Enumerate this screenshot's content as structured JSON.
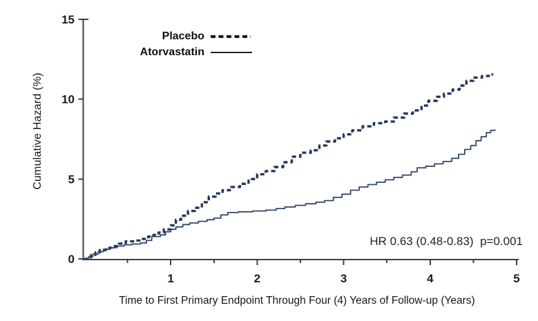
{
  "chart_data": {
    "type": "line",
    "subtype": "step",
    "title": "",
    "xlabel": "Time to First Primary Endpoint Through Four (4) Years of Follow-up (Years)",
    "ylabel": "Cumulative Hazard (%)",
    "xlim": [
      0,
      5
    ],
    "ylim": [
      0,
      15
    ],
    "x_ticks_major": [
      1,
      2,
      3,
      4,
      5
    ],
    "x_ticks_minor": [
      0.5,
      1.5,
      2.5,
      3.5,
      4.5
    ],
    "y_ticks": [
      0,
      5,
      10,
      15
    ],
    "grid": false,
    "legend_position": "top-left-inside",
    "annotation": "HR 0.63 (0.48-0.83)  p=0.001",
    "colors": {
      "placebo_line": "#25375c",
      "atorvastatin_line": "#32466c",
      "axis": "#3f3f3f",
      "tick_label": "#1c1c1c"
    },
    "series": [
      {
        "name": "Placebo",
        "style": "dashed",
        "color": "#25375c",
        "points": [
          [
            0,
            0
          ],
          [
            0.04,
            0.1
          ],
          [
            0.08,
            0.25
          ],
          [
            0.13,
            0.4
          ],
          [
            0.18,
            0.55
          ],
          [
            0.25,
            0.7
          ],
          [
            0.32,
            0.8
          ],
          [
            0.4,
            0.95
          ],
          [
            0.48,
            1.1
          ],
          [
            0.58,
            1.15
          ],
          [
            0.66,
            1.25
          ],
          [
            0.74,
            1.4
          ],
          [
            0.8,
            1.5
          ],
          [
            0.86,
            1.65
          ],
          [
            0.92,
            1.85
          ],
          [
            1.0,
            2.1
          ],
          [
            1.06,
            2.45
          ],
          [
            1.12,
            2.7
          ],
          [
            1.2,
            3.0
          ],
          [
            1.28,
            3.2
          ],
          [
            1.36,
            3.55
          ],
          [
            1.44,
            3.9
          ],
          [
            1.52,
            4.1
          ],
          [
            1.6,
            4.3
          ],
          [
            1.7,
            4.5
          ],
          [
            1.8,
            4.7
          ],
          [
            1.9,
            5.0
          ],
          [
            2.0,
            5.3
          ],
          [
            2.1,
            5.5
          ],
          [
            2.2,
            5.75
          ],
          [
            2.3,
            6.05
          ],
          [
            2.4,
            6.4
          ],
          [
            2.5,
            6.65
          ],
          [
            2.62,
            6.8
          ],
          [
            2.72,
            7.1
          ],
          [
            2.8,
            7.35
          ],
          [
            2.9,
            7.55
          ],
          [
            3.0,
            7.8
          ],
          [
            3.1,
            8.05
          ],
          [
            3.22,
            8.3
          ],
          [
            3.35,
            8.5
          ],
          [
            3.48,
            8.6
          ],
          [
            3.58,
            8.85
          ],
          [
            3.7,
            9.1
          ],
          [
            3.8,
            9.3
          ],
          [
            3.9,
            9.6
          ],
          [
            3.98,
            9.9
          ],
          [
            4.08,
            10.15
          ],
          [
            4.16,
            10.35
          ],
          [
            4.26,
            10.6
          ],
          [
            4.34,
            10.85
          ],
          [
            4.42,
            11.15
          ],
          [
            4.5,
            11.35
          ],
          [
            4.6,
            11.45
          ],
          [
            4.68,
            11.55
          ],
          [
            4.73,
            11.55
          ]
        ]
      },
      {
        "name": "Atorvastatin",
        "style": "solid",
        "color": "#32466c",
        "points": [
          [
            0,
            0
          ],
          [
            0.05,
            0.15
          ],
          [
            0.1,
            0.3
          ],
          [
            0.16,
            0.45
          ],
          [
            0.22,
            0.6
          ],
          [
            0.3,
            0.7
          ],
          [
            0.38,
            0.8
          ],
          [
            0.46,
            0.88
          ],
          [
            0.55,
            0.93
          ],
          [
            0.65,
            1.0
          ],
          [
            0.72,
            1.15
          ],
          [
            0.78,
            1.4
          ],
          [
            0.88,
            1.5
          ],
          [
            0.94,
            1.7
          ],
          [
            1.0,
            1.85
          ],
          [
            1.06,
            2.0
          ],
          [
            1.14,
            2.15
          ],
          [
            1.22,
            2.25
          ],
          [
            1.32,
            2.35
          ],
          [
            1.42,
            2.45
          ],
          [
            1.5,
            2.55
          ],
          [
            1.58,
            2.75
          ],
          [
            1.66,
            2.9
          ],
          [
            1.78,
            2.95
          ],
          [
            1.95,
            3.0
          ],
          [
            2.1,
            3.05
          ],
          [
            2.22,
            3.15
          ],
          [
            2.32,
            3.25
          ],
          [
            2.44,
            3.35
          ],
          [
            2.56,
            3.45
          ],
          [
            2.68,
            3.55
          ],
          [
            2.78,
            3.65
          ],
          [
            2.88,
            3.85
          ],
          [
            2.98,
            4.05
          ],
          [
            3.08,
            4.3
          ],
          [
            3.18,
            4.5
          ],
          [
            3.28,
            4.65
          ],
          [
            3.38,
            4.8
          ],
          [
            3.48,
            4.95
          ],
          [
            3.58,
            5.1
          ],
          [
            3.68,
            5.25
          ],
          [
            3.78,
            5.45
          ],
          [
            3.85,
            5.7
          ],
          [
            3.95,
            5.8
          ],
          [
            4.05,
            5.95
          ],
          [
            4.15,
            6.1
          ],
          [
            4.25,
            6.3
          ],
          [
            4.33,
            6.55
          ],
          [
            4.4,
            6.85
          ],
          [
            4.47,
            7.1
          ],
          [
            4.53,
            7.4
          ],
          [
            4.59,
            7.65
          ],
          [
            4.65,
            7.9
          ],
          [
            4.7,
            8.05
          ],
          [
            4.75,
            8.1
          ]
        ]
      }
    ]
  }
}
